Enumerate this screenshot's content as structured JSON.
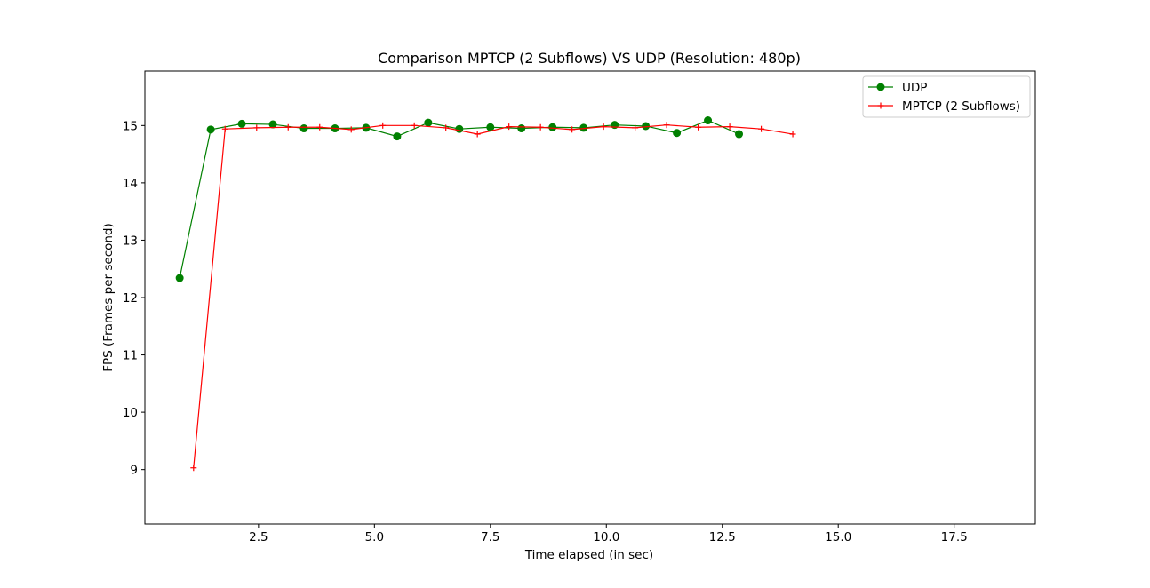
{
  "chart_data": {
    "type": "line",
    "title": "Comparison MPTCP (2 Subflows) VS UDP (Resolution: 480p)",
    "xlabel": "Time elapsed (in sec)",
    "ylabel": "FPS (Frames per second)",
    "xlim": [
      0.05,
      19.25
    ],
    "ylim": [
      8.05,
      15.95
    ],
    "xticks": [
      2.5,
      5.0,
      7.5,
      10.0,
      12.5,
      15.0,
      17.5
    ],
    "xtick_labels": [
      "2.5",
      "5.0",
      "7.5",
      "10.0",
      "12.5",
      "15.0",
      "17.5"
    ],
    "yticks": [
      9,
      10,
      11,
      12,
      13,
      14,
      15
    ],
    "ytick_labels": [
      "9",
      "10",
      "11",
      "12",
      "13",
      "14",
      "15"
    ],
    "grid": false,
    "legend_position": "top-right",
    "series": [
      {
        "name": "UDP",
        "color": "#008000",
        "marker": "circle",
        "x": [
          0.8,
          1.47,
          2.14,
          2.81,
          3.48,
          4.15,
          4.82,
          5.49,
          6.16,
          6.83,
          7.5,
          8.17,
          8.84,
          9.51,
          10.18,
          10.85,
          11.52,
          12.19,
          12.86
        ],
        "y": [
          12.34,
          14.93,
          15.03,
          15.02,
          14.95,
          14.95,
          14.96,
          14.81,
          15.05,
          14.94,
          14.97,
          14.95,
          14.97,
          14.96,
          15.01,
          14.99,
          14.87,
          15.09,
          14.85
        ]
      },
      {
        "name": "MPTCP (2 Subflows)",
        "color": "#ff0000",
        "marker": "plus",
        "x": [
          1.1,
          1.78,
          2.46,
          3.14,
          3.82,
          4.5,
          5.18,
          5.86,
          6.54,
          7.22,
          7.9,
          8.58,
          9.26,
          9.94,
          10.62,
          11.3,
          11.98,
          12.66,
          13.34,
          14.02
        ],
        "y": [
          9.03,
          14.94,
          14.96,
          14.97,
          14.97,
          14.93,
          15.0,
          15.0,
          14.96,
          14.85,
          14.98,
          14.97,
          14.93,
          14.98,
          14.96,
          15.01,
          14.97,
          14.98,
          14.94,
          14.85
        ]
      }
    ]
  }
}
